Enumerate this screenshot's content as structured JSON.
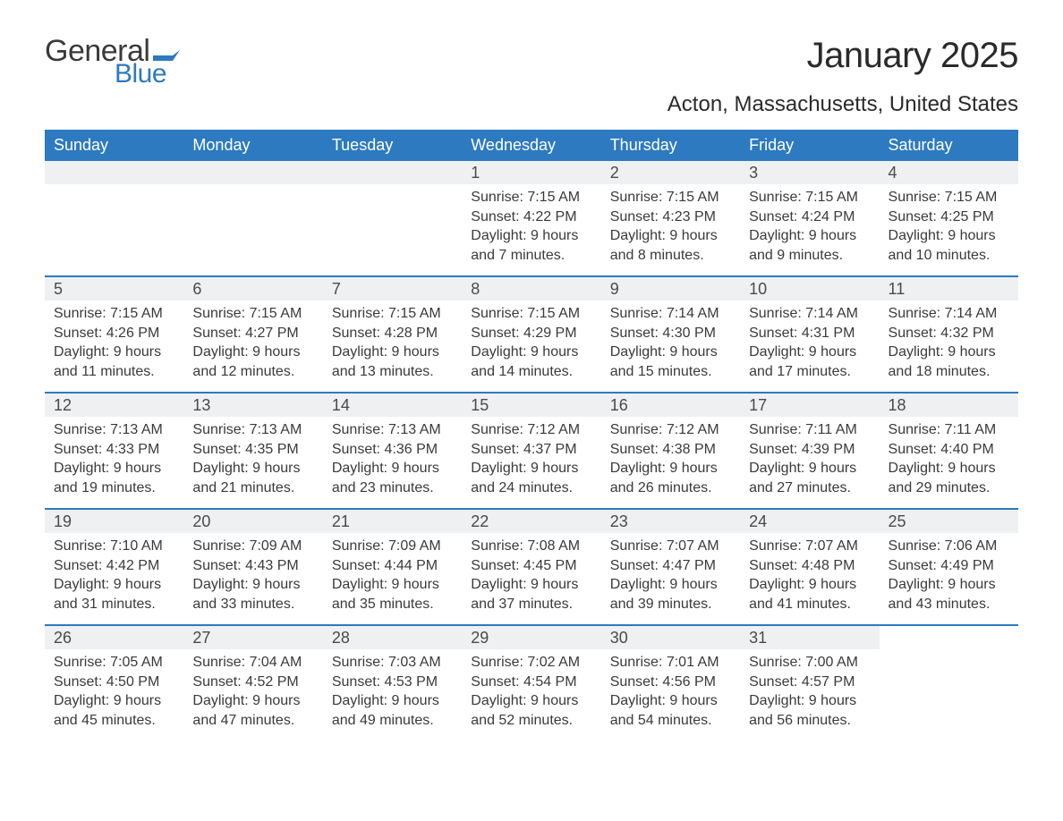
{
  "logo": {
    "general": "General",
    "blue": "Blue"
  },
  "title": "January 2025",
  "location": "Acton, Massachusetts, United States",
  "colors": {
    "accent": "#2d7ac0",
    "day_num_bg": "#eef0f1",
    "text": "#3a3a3a",
    "header_text": "#ffffff",
    "background": "#ffffff"
  },
  "typography": {
    "title_fontsize": 40,
    "location_fontsize": 24,
    "header_fontsize": 18,
    "body_fontsize": 16,
    "font_family": "Arial"
  },
  "layout": {
    "type": "calendar-month",
    "columns": 7,
    "rows": 5
  },
  "day_headers": [
    "Sunday",
    "Monday",
    "Tuesday",
    "Wednesday",
    "Thursday",
    "Friday",
    "Saturday"
  ],
  "weeks": [
    [
      null,
      null,
      null,
      {
        "n": "1",
        "sunrise": "Sunrise: 7:15 AM",
        "sunset": "Sunset: 4:22 PM",
        "dl1": "Daylight: 9 hours",
        "dl2": "and 7 minutes."
      },
      {
        "n": "2",
        "sunrise": "Sunrise: 7:15 AM",
        "sunset": "Sunset: 4:23 PM",
        "dl1": "Daylight: 9 hours",
        "dl2": "and 8 minutes."
      },
      {
        "n": "3",
        "sunrise": "Sunrise: 7:15 AM",
        "sunset": "Sunset: 4:24 PM",
        "dl1": "Daylight: 9 hours",
        "dl2": "and 9 minutes."
      },
      {
        "n": "4",
        "sunrise": "Sunrise: 7:15 AM",
        "sunset": "Sunset: 4:25 PM",
        "dl1": "Daylight: 9 hours",
        "dl2": "and 10 minutes."
      }
    ],
    [
      {
        "n": "5",
        "sunrise": "Sunrise: 7:15 AM",
        "sunset": "Sunset: 4:26 PM",
        "dl1": "Daylight: 9 hours",
        "dl2": "and 11 minutes."
      },
      {
        "n": "6",
        "sunrise": "Sunrise: 7:15 AM",
        "sunset": "Sunset: 4:27 PM",
        "dl1": "Daylight: 9 hours",
        "dl2": "and 12 minutes."
      },
      {
        "n": "7",
        "sunrise": "Sunrise: 7:15 AM",
        "sunset": "Sunset: 4:28 PM",
        "dl1": "Daylight: 9 hours",
        "dl2": "and 13 minutes."
      },
      {
        "n": "8",
        "sunrise": "Sunrise: 7:15 AM",
        "sunset": "Sunset: 4:29 PM",
        "dl1": "Daylight: 9 hours",
        "dl2": "and 14 minutes."
      },
      {
        "n": "9",
        "sunrise": "Sunrise: 7:14 AM",
        "sunset": "Sunset: 4:30 PM",
        "dl1": "Daylight: 9 hours",
        "dl2": "and 15 minutes."
      },
      {
        "n": "10",
        "sunrise": "Sunrise: 7:14 AM",
        "sunset": "Sunset: 4:31 PM",
        "dl1": "Daylight: 9 hours",
        "dl2": "and 17 minutes."
      },
      {
        "n": "11",
        "sunrise": "Sunrise: 7:14 AM",
        "sunset": "Sunset: 4:32 PM",
        "dl1": "Daylight: 9 hours",
        "dl2": "and 18 minutes."
      }
    ],
    [
      {
        "n": "12",
        "sunrise": "Sunrise: 7:13 AM",
        "sunset": "Sunset: 4:33 PM",
        "dl1": "Daylight: 9 hours",
        "dl2": "and 19 minutes."
      },
      {
        "n": "13",
        "sunrise": "Sunrise: 7:13 AM",
        "sunset": "Sunset: 4:35 PM",
        "dl1": "Daylight: 9 hours",
        "dl2": "and 21 minutes."
      },
      {
        "n": "14",
        "sunrise": "Sunrise: 7:13 AM",
        "sunset": "Sunset: 4:36 PM",
        "dl1": "Daylight: 9 hours",
        "dl2": "and 23 minutes."
      },
      {
        "n": "15",
        "sunrise": "Sunrise: 7:12 AM",
        "sunset": "Sunset: 4:37 PM",
        "dl1": "Daylight: 9 hours",
        "dl2": "and 24 minutes."
      },
      {
        "n": "16",
        "sunrise": "Sunrise: 7:12 AM",
        "sunset": "Sunset: 4:38 PM",
        "dl1": "Daylight: 9 hours",
        "dl2": "and 26 minutes."
      },
      {
        "n": "17",
        "sunrise": "Sunrise: 7:11 AM",
        "sunset": "Sunset: 4:39 PM",
        "dl1": "Daylight: 9 hours",
        "dl2": "and 27 minutes."
      },
      {
        "n": "18",
        "sunrise": "Sunrise: 7:11 AM",
        "sunset": "Sunset: 4:40 PM",
        "dl1": "Daylight: 9 hours",
        "dl2": "and 29 minutes."
      }
    ],
    [
      {
        "n": "19",
        "sunrise": "Sunrise: 7:10 AM",
        "sunset": "Sunset: 4:42 PM",
        "dl1": "Daylight: 9 hours",
        "dl2": "and 31 minutes."
      },
      {
        "n": "20",
        "sunrise": "Sunrise: 7:09 AM",
        "sunset": "Sunset: 4:43 PM",
        "dl1": "Daylight: 9 hours",
        "dl2": "and 33 minutes."
      },
      {
        "n": "21",
        "sunrise": "Sunrise: 7:09 AM",
        "sunset": "Sunset: 4:44 PM",
        "dl1": "Daylight: 9 hours",
        "dl2": "and 35 minutes."
      },
      {
        "n": "22",
        "sunrise": "Sunrise: 7:08 AM",
        "sunset": "Sunset: 4:45 PM",
        "dl1": "Daylight: 9 hours",
        "dl2": "and 37 minutes."
      },
      {
        "n": "23",
        "sunrise": "Sunrise: 7:07 AM",
        "sunset": "Sunset: 4:47 PM",
        "dl1": "Daylight: 9 hours",
        "dl2": "and 39 minutes."
      },
      {
        "n": "24",
        "sunrise": "Sunrise: 7:07 AM",
        "sunset": "Sunset: 4:48 PM",
        "dl1": "Daylight: 9 hours",
        "dl2": "and 41 minutes."
      },
      {
        "n": "25",
        "sunrise": "Sunrise: 7:06 AM",
        "sunset": "Sunset: 4:49 PM",
        "dl1": "Daylight: 9 hours",
        "dl2": "and 43 minutes."
      }
    ],
    [
      {
        "n": "26",
        "sunrise": "Sunrise: 7:05 AM",
        "sunset": "Sunset: 4:50 PM",
        "dl1": "Daylight: 9 hours",
        "dl2": "and 45 minutes."
      },
      {
        "n": "27",
        "sunrise": "Sunrise: 7:04 AM",
        "sunset": "Sunset: 4:52 PM",
        "dl1": "Daylight: 9 hours",
        "dl2": "and 47 minutes."
      },
      {
        "n": "28",
        "sunrise": "Sunrise: 7:03 AM",
        "sunset": "Sunset: 4:53 PM",
        "dl1": "Daylight: 9 hours",
        "dl2": "and 49 minutes."
      },
      {
        "n": "29",
        "sunrise": "Sunrise: 7:02 AM",
        "sunset": "Sunset: 4:54 PM",
        "dl1": "Daylight: 9 hours",
        "dl2": "and 52 minutes."
      },
      {
        "n": "30",
        "sunrise": "Sunrise: 7:01 AM",
        "sunset": "Sunset: 4:56 PM",
        "dl1": "Daylight: 9 hours",
        "dl2": "and 54 minutes."
      },
      {
        "n": "31",
        "sunrise": "Sunrise: 7:00 AM",
        "sunset": "Sunset: 4:57 PM",
        "dl1": "Daylight: 9 hours",
        "dl2": "and 56 minutes."
      },
      null
    ]
  ]
}
